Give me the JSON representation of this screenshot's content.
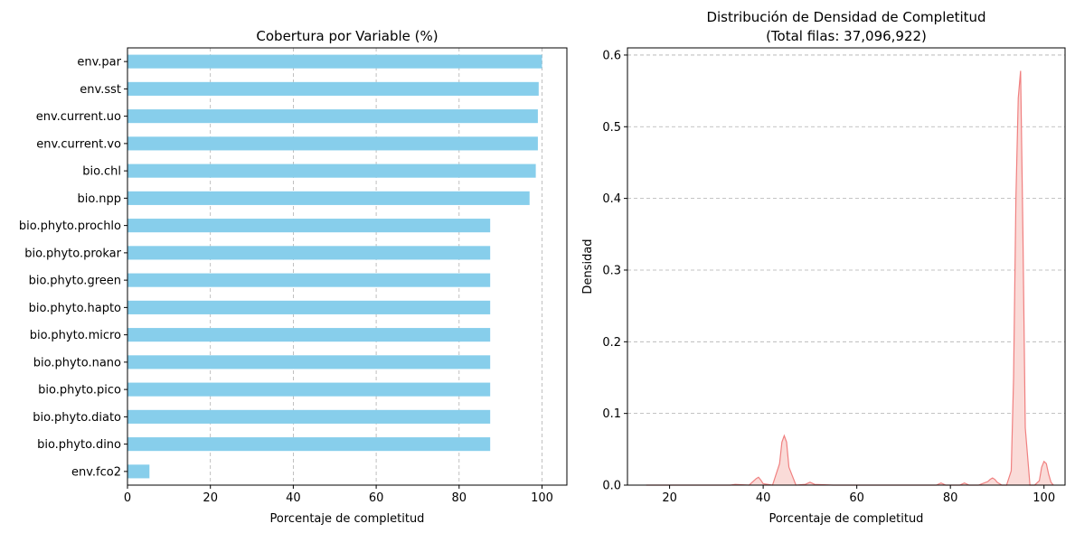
{
  "chart_data": [
    {
      "type": "bar",
      "orientation": "horizontal",
      "title": "Cobertura por Variable (%)",
      "xlabel": "Porcentaje de completitud",
      "ylabel": "",
      "xlim": [
        0,
        106
      ],
      "xticks": [
        "0",
        "20",
        "40",
        "60",
        "80",
        "100"
      ],
      "grid": "x-dashed",
      "bar_color": "#87ceeb",
      "categories": [
        "env.par",
        "env.sst",
        "env.current.uo",
        "env.current.vo",
        "bio.chl",
        "bio.npp",
        "bio.phyto.prochlo",
        "bio.phyto.prokar",
        "bio.phyto.green",
        "bio.phyto.hapto",
        "bio.phyto.micro",
        "bio.phyto.nano",
        "bio.phyto.pico",
        "bio.phyto.diato",
        "bio.phyto.dino",
        "env.fco2"
      ],
      "values": [
        100,
        99.2,
        99.0,
        99.0,
        98.5,
        97.0,
        87.5,
        87.5,
        87.5,
        87.5,
        87.5,
        87.5,
        87.5,
        87.5,
        87.5,
        5.3
      ]
    },
    {
      "type": "area",
      "subtype": "kde",
      "title": "Distribución de Densidad de Completitud",
      "subtitle": "(Total filas: 37,096,922)",
      "xlabel": "Porcentaje de completitud",
      "ylabel": "Densidad",
      "xlim": [
        11,
        104.5
      ],
      "ylim": [
        0,
        0.61
      ],
      "xticks": [
        "20",
        "40",
        "60",
        "80",
        "100"
      ],
      "yticks": [
        "0.0",
        "0.1",
        "0.2",
        "0.3",
        "0.4",
        "0.5",
        "0.6"
      ],
      "grid": "y-dashed",
      "line_color": "#f08080",
      "fill_color": "#fadbd8",
      "x": [
        15,
        20,
        25,
        30,
        33,
        34,
        37,
        38,
        38.5,
        39,
        39.5,
        40,
        42,
        43.5,
        44,
        44.5,
        45,
        45.5,
        47,
        49,
        50,
        51,
        55,
        60,
        65,
        70,
        75,
        77,
        78,
        79,
        82,
        83,
        84,
        86,
        88,
        88.5,
        89,
        89.5,
        90,
        91,
        92,
        93,
        93.5,
        94,
        94.5,
        95,
        95.5,
        96,
        97,
        98,
        99,
        99.5,
        100,
        100.5,
        101,
        101.5,
        102
      ],
      "y": [
        0,
        0,
        0,
        0,
        0,
        0.001,
        0,
        0.006,
        0.009,
        0.011,
        0.007,
        0.002,
        0,
        0.03,
        0.06,
        0.069,
        0.06,
        0.025,
        0,
        0.001,
        0.004,
        0.001,
        0,
        0,
        0,
        0,
        0,
        0,
        0.003,
        0,
        0,
        0.003,
        0,
        0,
        0.005,
        0.008,
        0.01,
        0.008,
        0.004,
        0,
        0,
        0.02,
        0.15,
        0.4,
        0.54,
        0.578,
        0.35,
        0.08,
        0,
        0,
        0.006,
        0.025,
        0.033,
        0.03,
        0.015,
        0.004,
        0
      ]
    }
  ]
}
